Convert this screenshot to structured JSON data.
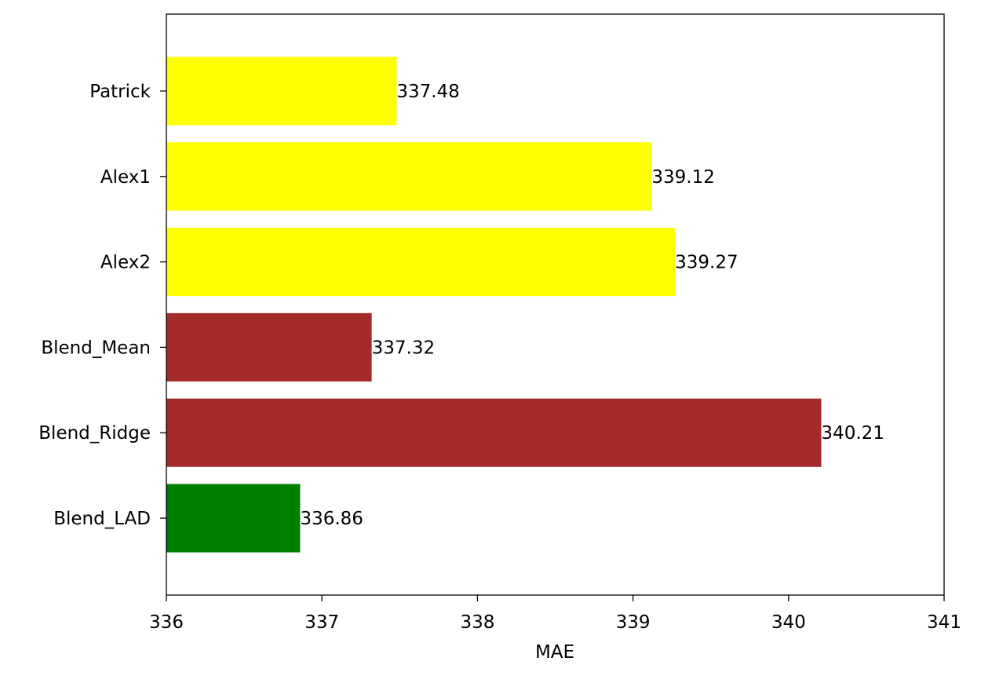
{
  "chart_data": {
    "type": "bar",
    "orientation": "horizontal",
    "categories": [
      "Patrick",
      "Alex1",
      "Alex2",
      "Blend_Mean",
      "Blend_Ridge",
      "Blend_LAD"
    ],
    "values": [
      337.48,
      339.12,
      339.27,
      337.32,
      340.21,
      336.86
    ],
    "value_labels": [
      "337.48",
      "339.12",
      "339.27",
      "337.32",
      "340.21",
      "336.86"
    ],
    "bar_colors": [
      "#ffff00",
      "#ffff00",
      "#ffff00",
      "#a52a2a",
      "#a52a2a",
      "#008000"
    ],
    "xlabel": "MAE",
    "ylabel": "",
    "title": "",
    "xlim": [
      336,
      341
    ],
    "xticks": [
      336,
      337,
      338,
      339,
      340,
      341
    ],
    "grid": false,
    "legend": "none"
  }
}
